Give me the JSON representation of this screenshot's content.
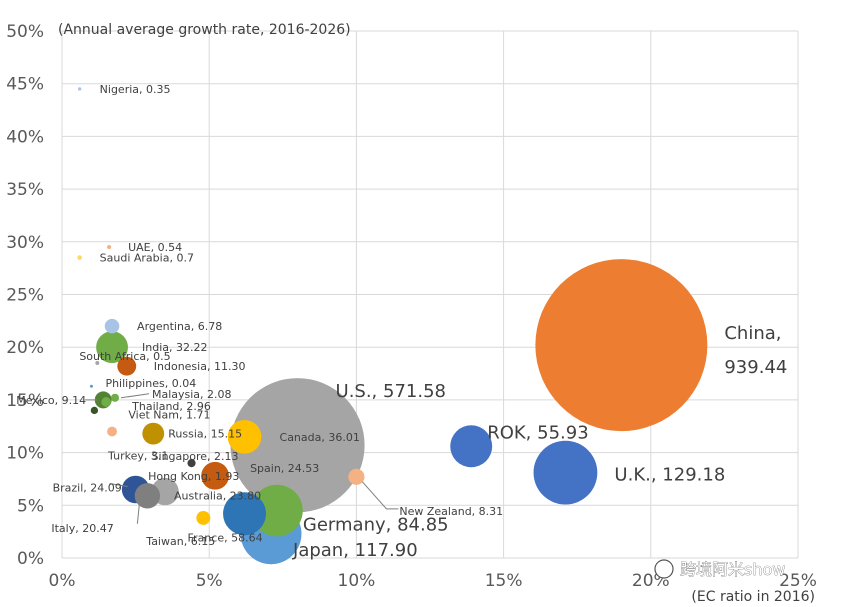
{
  "chart_data": {
    "type": "scatter",
    "variant": "bubble",
    "title": "",
    "ylabel": "(Annual average growth rate, 2016-2026)",
    "xlabel": "(EC ratio in 2016)",
    "xlim": [
      0,
      25
    ],
    "ylim": [
      0,
      50
    ],
    "x_ticks": [
      "0%",
      "5%",
      "10%",
      "15%",
      "20%",
      "25%"
    ],
    "y_ticks": [
      "0%",
      "5%",
      "10%",
      "15%",
      "20%",
      "25%",
      "30%",
      "35%",
      "40%",
      "45%",
      "50%"
    ],
    "grid": true,
    "legend": "none",
    "size_measure": "bubble area ~ value",
    "points": [
      {
        "label": "Nigeria, 0.35",
        "x": 0.6,
        "y": 44.5,
        "size": 0.35,
        "color": "#a9c3e6"
      },
      {
        "label": "UAE, 0.54",
        "x": 1.6,
        "y": 29.5,
        "size": 0.54,
        "color": "#f4b183"
      },
      {
        "label": "Saudi Arabia, 0.7",
        "x": 0.6,
        "y": 28.5,
        "size": 0.7,
        "color": "#ffd966"
      },
      {
        "label": "Argentina, 6.78",
        "x": 1.7,
        "y": 22.0,
        "size": 6.78,
        "color": "#a9c3e6"
      },
      {
        "label": "India, 32.22",
        "x": 1.7,
        "y": 20.0,
        "size": 32.22,
        "color": "#70ad47"
      },
      {
        "label": "South Africa, 0.5",
        "x": 1.2,
        "y": 18.5,
        "size": 0.5,
        "color": "#a5a5a5"
      },
      {
        "label": "Indonesia, 11.30",
        "x": 2.2,
        "y": 18.2,
        "size": 11.3,
        "color": "#c55a11"
      },
      {
        "label": "Philippines, 0.04",
        "x": 1.0,
        "y": 16.3,
        "size": 0.04,
        "color": "#5b9bd5"
      },
      {
        "label": "Malaysia, 2.08",
        "x": 1.8,
        "y": 15.2,
        "size": 2.08,
        "color": "#70ad47"
      },
      {
        "label": "Mexico, 9.14",
        "x": 1.4,
        "y": 15.0,
        "size": 9.14,
        "color": "#548235"
      },
      {
        "label": "Thailand, 2.96",
        "x": 1.5,
        "y": 14.8,
        "size": 2.96,
        "color": "#70ad47"
      },
      {
        "label": "Viet Nam, 1.71",
        "x": 1.1,
        "y": 14.0,
        "size": 1.71,
        "color": "#375623"
      },
      {
        "label": "Turkey, 3.1",
        "x": 1.7,
        "y": 12.0,
        "size": 3.1,
        "color": "#f4b183"
      },
      {
        "label": "Russia, 15.15",
        "x": 3.1,
        "y": 11.8,
        "size": 15.15,
        "color": "#bf9000"
      },
      {
        "label": "Canada, 36.01",
        "x": 6.2,
        "y": 11.5,
        "size": 36.01,
        "color": "#ffc000"
      },
      {
        "label": "Singapore, 2.13",
        "x": 4.4,
        "y": 9.0,
        "size": 2.13,
        "color": "#404040"
      },
      {
        "label": "Brazil, 24.09",
        "x": 2.5,
        "y": 6.5,
        "size": 24.09,
        "color": "#2f5597"
      },
      {
        "label": "Hong Kong, 1.93",
        "x": 5.2,
        "y": 7.8,
        "size": 1.93,
        "color": "#c55a11"
      },
      {
        "label": "Spain, 24.53",
        "x": 5.2,
        "y": 7.8,
        "size": 24.53,
        "color": "#c55a11"
      },
      {
        "label": "Australia, 23.80",
        "x": 3.5,
        "y": 6.3,
        "size": 23.8,
        "color": "#a5a5a5"
      },
      {
        "label": "Italy, 20.47",
        "x": 2.9,
        "y": 5.9,
        "size": 20.47,
        "color": "#7f7f7f"
      },
      {
        "label": "Taiwan, 6.15",
        "x": 4.8,
        "y": 3.8,
        "size": 6.15,
        "color": "#ffc000"
      },
      {
        "label": "France, 58.64",
        "x": 6.2,
        "y": 4.2,
        "size": 58.64,
        "color": "#2e75b6"
      },
      {
        "label": "Germany, 84.85",
        "x": 7.3,
        "y": 4.5,
        "size": 84.85,
        "color": "#70ad47"
      },
      {
        "label": "Japan, 117.90",
        "x": 7.1,
        "y": 2.3,
        "size": 117.9,
        "color": "#5b9bd5"
      },
      {
        "label": "U.S., 571.58",
        "x": 8.0,
        "y": 10.7,
        "size": 571.58,
        "color": "#a5a5a5"
      },
      {
        "label": "New Zealand, 8.31",
        "x": 10.0,
        "y": 7.7,
        "size": 8.31,
        "color": "#f4b183"
      },
      {
        "label": "ROK, 55.93",
        "x": 13.9,
        "y": 10.6,
        "size": 55.93,
        "color": "#4472c4"
      },
      {
        "label": "U.K., 129.18",
        "x": 17.1,
        "y": 8.1,
        "size": 129.18,
        "color": "#4472c4"
      },
      {
        "label": "China, 939.44",
        "x": 19.0,
        "y": 20.2,
        "size": 939.44,
        "color": "#ed7d31"
      }
    ]
  },
  "watermark": "跨境阿米show"
}
